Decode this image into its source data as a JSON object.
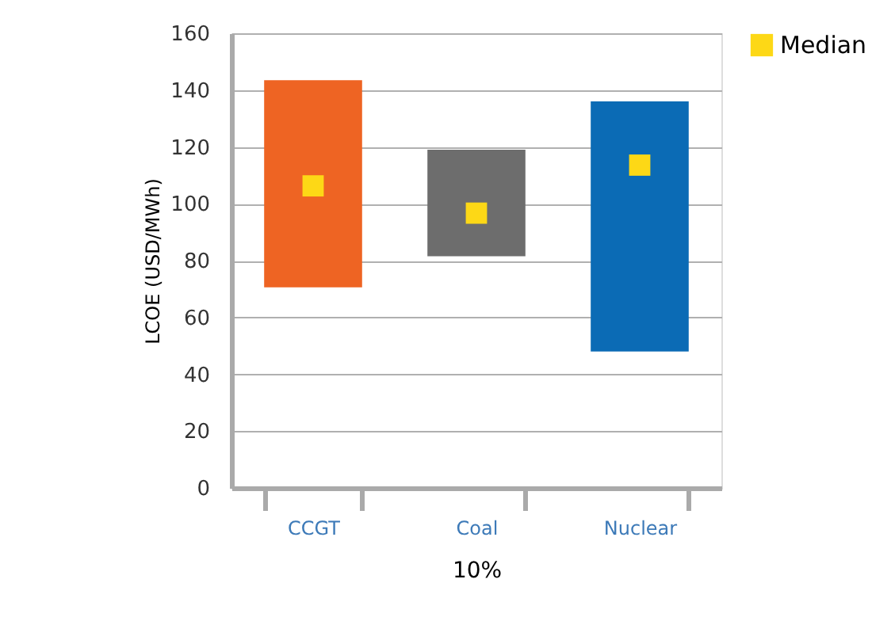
{
  "chart_data": {
    "type": "bar",
    "categories": [
      "CCGT",
      "Coal",
      "Nuclear"
    ],
    "xlabel": "10%",
    "ylabel": "LCOE (USD/MWh)",
    "ylim": [
      0,
      160
    ],
    "yticks": [
      0,
      20,
      40,
      60,
      80,
      100,
      120,
      140,
      160
    ],
    "grid": "y",
    "legend": "top right",
    "series": [
      {
        "type": "bar",
        "colors": [
          "#ee6423",
          "#6d6d6d",
          "#0b6bb5"
        ],
        "base": [
          70.6,
          81.5,
          48
        ],
        "values": [
          72.9,
          37.5,
          88
        ]
      },
      {
        "type": "scatter",
        "name": "Median",
        "color": "#fdd816",
        "marker": "square",
        "values": [
          106.3,
          96.7,
          113.6
        ]
      }
    ]
  }
}
